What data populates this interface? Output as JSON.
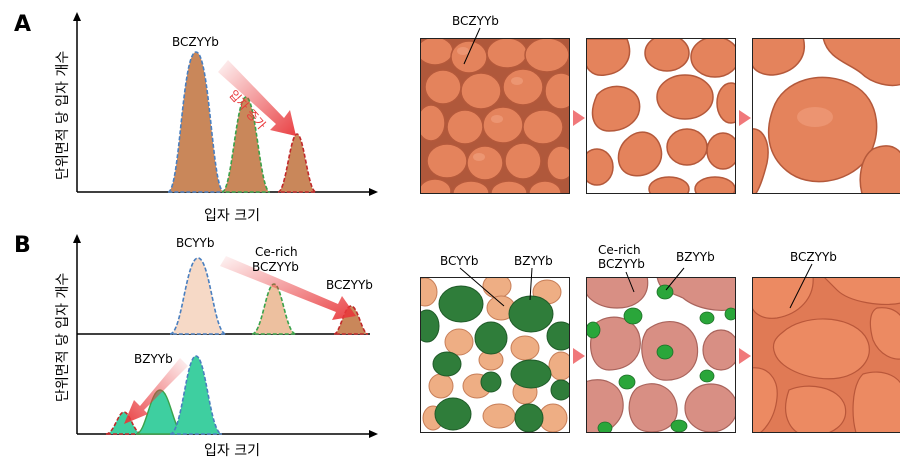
{
  "panel_a": {
    "letter": "A",
    "y_label": "단위면적 당 입자 개수",
    "x_label": "입자 크기",
    "peak_label": "BCZYYb",
    "arrow_label": "입자 증가",
    "image_label": "BCZYYb"
  },
  "panel_b": {
    "letter": "B",
    "y_label": "단위면적 당 입자 개수",
    "x_label": "입자 크기",
    "upper_peak_1": "BCYYb",
    "upper_peak_2_line1": "Ce-rich",
    "upper_peak_2_line2": "BCZYYb",
    "upper_peak_3": "BCZYYb",
    "lower_peak": "BZYYb",
    "img1_label_a": "BCYYb",
    "img1_label_b": "BZYYb",
    "img2_label_a_line1": "Ce-rich",
    "img2_label_a_line2": "BCZYYb",
    "img2_label_b": "BZYYb",
    "img3_label": "BCZYYb"
  },
  "colors": {
    "peak_orange": "#c9875a",
    "peak_light": "#f6d9c6",
    "peak_teal": "#3ecfa0",
    "dash_blue": "#4a7fbf",
    "dash_green": "#3aa24a",
    "dash_red": "#c0282a",
    "arrow_red": "#e8373a",
    "particle_orange": "#e4835c",
    "particle_green": "#2f7d3a",
    "particle_peach": "#eeae84",
    "particle_pink": "#d88f84"
  }
}
